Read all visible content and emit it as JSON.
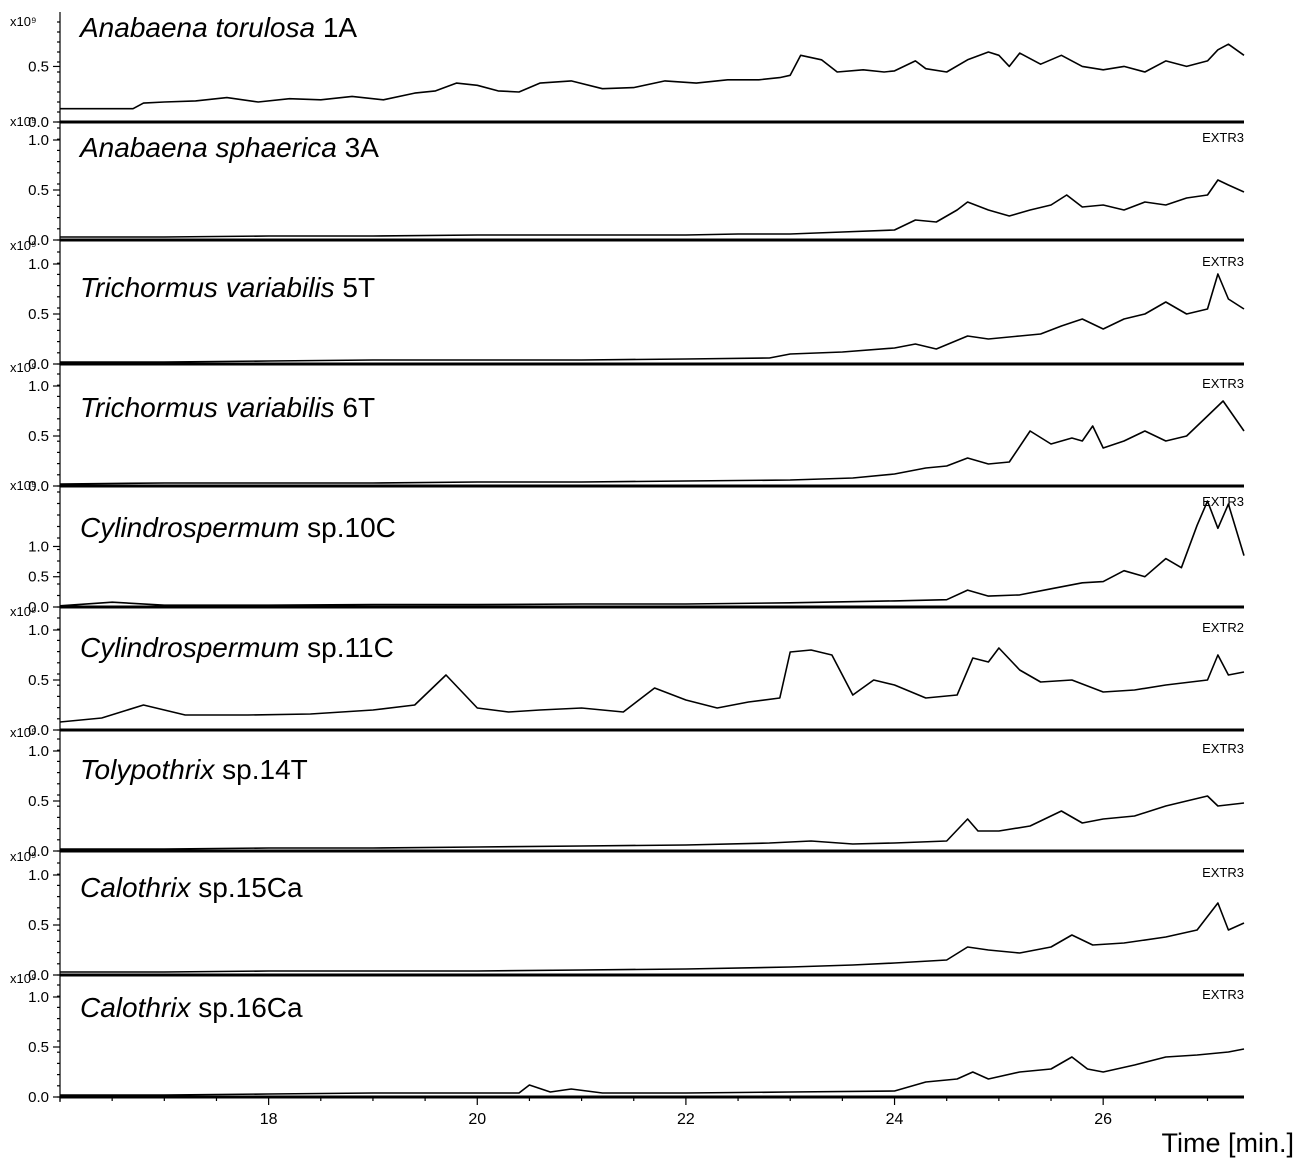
{
  "chart_data": {
    "type": "line",
    "x_label": "Time [min.]",
    "x_ticks": [
      18,
      20,
      22,
      24,
      26
    ],
    "x_range": [
      16.0,
      27.35
    ],
    "y_exponent_label": "x10⁹",
    "panels": [
      {
        "name_italic": "Anabaena torulosa",
        "name_plain": " 1A",
        "extr": "",
        "y_ticks": [
          "0.0",
          "0.5"
        ],
        "y_tick_values": [
          0.0,
          0.5
        ],
        "y_max": 0.9,
        "series": [
          [
            16.0,
            0.12
          ],
          [
            16.7,
            0.12
          ],
          [
            16.8,
            0.17
          ],
          [
            17.0,
            0.18
          ],
          [
            17.3,
            0.19
          ],
          [
            17.6,
            0.22
          ],
          [
            17.9,
            0.18
          ],
          [
            18.2,
            0.21
          ],
          [
            18.5,
            0.2
          ],
          [
            18.8,
            0.23
          ],
          [
            19.1,
            0.2
          ],
          [
            19.4,
            0.26
          ],
          [
            19.6,
            0.28
          ],
          [
            19.8,
            0.35
          ],
          [
            20.0,
            0.33
          ],
          [
            20.2,
            0.28
          ],
          [
            20.4,
            0.27
          ],
          [
            20.6,
            0.35
          ],
          [
            20.9,
            0.37
          ],
          [
            21.2,
            0.3
          ],
          [
            21.5,
            0.31
          ],
          [
            21.8,
            0.37
          ],
          [
            22.1,
            0.35
          ],
          [
            22.4,
            0.38
          ],
          [
            22.7,
            0.38
          ],
          [
            22.9,
            0.4
          ],
          [
            23.0,
            0.42
          ],
          [
            23.1,
            0.6
          ],
          [
            23.3,
            0.56
          ],
          [
            23.45,
            0.45
          ],
          [
            23.7,
            0.47
          ],
          [
            23.9,
            0.45
          ],
          [
            24.0,
            0.46
          ],
          [
            24.2,
            0.55
          ],
          [
            24.3,
            0.48
          ],
          [
            24.5,
            0.45
          ],
          [
            24.7,
            0.56
          ],
          [
            24.9,
            0.63
          ],
          [
            25.0,
            0.6
          ],
          [
            25.1,
            0.5
          ],
          [
            25.2,
            0.62
          ],
          [
            25.4,
            0.52
          ],
          [
            25.6,
            0.6
          ],
          [
            25.8,
            0.5
          ],
          [
            26.0,
            0.47
          ],
          [
            26.2,
            0.5
          ],
          [
            26.4,
            0.45
          ],
          [
            26.6,
            0.55
          ],
          [
            26.8,
            0.5
          ],
          [
            27.0,
            0.55
          ],
          [
            27.1,
            0.65
          ],
          [
            27.2,
            0.7
          ],
          [
            27.35,
            0.6
          ]
        ]
      },
      {
        "name_italic": "Anabaena sphaerica",
        "name_plain": " 3A",
        "extr": "EXTR3",
        "y_ticks": [
          "0.0",
          "0.5",
          "1.0"
        ],
        "y_tick_values": [
          0.0,
          0.5,
          1.0
        ],
        "y_max": 1.12,
        "series": [
          [
            16.0,
            0.03
          ],
          [
            17.0,
            0.03
          ],
          [
            18.0,
            0.04
          ],
          [
            19.0,
            0.04
          ],
          [
            20.0,
            0.05
          ],
          [
            21.0,
            0.05
          ],
          [
            22.0,
            0.05
          ],
          [
            22.5,
            0.06
          ],
          [
            23.0,
            0.06
          ],
          [
            23.5,
            0.08
          ],
          [
            24.0,
            0.1
          ],
          [
            24.2,
            0.2
          ],
          [
            24.4,
            0.18
          ],
          [
            24.6,
            0.3
          ],
          [
            24.7,
            0.38
          ],
          [
            24.9,
            0.3
          ],
          [
            25.1,
            0.24
          ],
          [
            25.3,
            0.3
          ],
          [
            25.5,
            0.35
          ],
          [
            25.65,
            0.45
          ],
          [
            25.8,
            0.33
          ],
          [
            26.0,
            0.35
          ],
          [
            26.2,
            0.3
          ],
          [
            26.4,
            0.38
          ],
          [
            26.6,
            0.35
          ],
          [
            26.8,
            0.42
          ],
          [
            27.0,
            0.45
          ],
          [
            27.1,
            0.6
          ],
          [
            27.2,
            0.55
          ],
          [
            27.35,
            0.48
          ]
        ]
      },
      {
        "name_italic": "Trichormus variabilis",
        "name_plain": "  5T",
        "extr": "EXTR3",
        "y_ticks": [
          "0.0",
          "0.5",
          "1.0"
        ],
        "y_tick_values": [
          0.0,
          0.5,
          1.0
        ],
        "y_max": 1.12,
        "series": [
          [
            16.0,
            0.02
          ],
          [
            17.0,
            0.02
          ],
          [
            18.0,
            0.03
          ],
          [
            19.0,
            0.04
          ],
          [
            20.0,
            0.04
          ],
          [
            21.0,
            0.04
          ],
          [
            22.0,
            0.05
          ],
          [
            22.8,
            0.06
          ],
          [
            23.0,
            0.1
          ],
          [
            23.5,
            0.12
          ],
          [
            24.0,
            0.16
          ],
          [
            24.2,
            0.2
          ],
          [
            24.4,
            0.15
          ],
          [
            24.7,
            0.28
          ],
          [
            24.9,
            0.25
          ],
          [
            25.2,
            0.28
          ],
          [
            25.4,
            0.3
          ],
          [
            25.6,
            0.38
          ],
          [
            25.8,
            0.45
          ],
          [
            26.0,
            0.35
          ],
          [
            26.2,
            0.45
          ],
          [
            26.4,
            0.5
          ],
          [
            26.6,
            0.62
          ],
          [
            26.8,
            0.5
          ],
          [
            27.0,
            0.55
          ],
          [
            27.1,
            0.9
          ],
          [
            27.2,
            0.65
          ],
          [
            27.35,
            0.55
          ]
        ]
      },
      {
        "name_italic": "Trichormus variabilis",
        "name_plain": " 6T",
        "extr": "EXTR3",
        "y_ticks": [
          "0.0",
          "0.5",
          "1.0"
        ],
        "y_tick_values": [
          0.0,
          0.5,
          1.0
        ],
        "y_max": 1.12,
        "series": [
          [
            16.0,
            0.02
          ],
          [
            17.0,
            0.03
          ],
          [
            18.0,
            0.03
          ],
          [
            19.0,
            0.03
          ],
          [
            20.0,
            0.04
          ],
          [
            21.0,
            0.04
          ],
          [
            22.0,
            0.05
          ],
          [
            23.0,
            0.06
          ],
          [
            23.6,
            0.08
          ],
          [
            24.0,
            0.12
          ],
          [
            24.3,
            0.18
          ],
          [
            24.5,
            0.2
          ],
          [
            24.7,
            0.28
          ],
          [
            24.9,
            0.22
          ],
          [
            25.1,
            0.24
          ],
          [
            25.3,
            0.55
          ],
          [
            25.5,
            0.42
          ],
          [
            25.7,
            0.48
          ],
          [
            25.8,
            0.45
          ],
          [
            25.9,
            0.6
          ],
          [
            26.0,
            0.38
          ],
          [
            26.2,
            0.45
          ],
          [
            26.4,
            0.55
          ],
          [
            26.6,
            0.45
          ],
          [
            26.8,
            0.5
          ],
          [
            27.0,
            0.7
          ],
          [
            27.15,
            0.85
          ],
          [
            27.35,
            0.55
          ]
        ]
      },
      {
        "name_italic": "Cylindrospermum",
        "name_plain": " sp.10C",
        "extr": "EXTR3",
        "y_ticks": [
          "0.0",
          "0.5",
          "1.0"
        ],
        "y_tick_values": [
          0.0,
          0.5,
          1.0
        ],
        "y_max": 1.9,
        "series": [
          [
            16.0,
            0.02
          ],
          [
            16.5,
            0.08
          ],
          [
            17.0,
            0.03
          ],
          [
            18.0,
            0.03
          ],
          [
            19.0,
            0.04
          ],
          [
            20.0,
            0.04
          ],
          [
            21.0,
            0.05
          ],
          [
            22.0,
            0.05
          ],
          [
            23.0,
            0.07
          ],
          [
            24.0,
            0.1
          ],
          [
            24.5,
            0.12
          ],
          [
            24.7,
            0.28
          ],
          [
            24.9,
            0.18
          ],
          [
            25.2,
            0.2
          ],
          [
            25.5,
            0.3
          ],
          [
            25.8,
            0.4
          ],
          [
            26.0,
            0.42
          ],
          [
            26.2,
            0.6
          ],
          [
            26.4,
            0.5
          ],
          [
            26.6,
            0.8
          ],
          [
            26.75,
            0.65
          ],
          [
            26.9,
            1.35
          ],
          [
            27.0,
            1.75
          ],
          [
            27.1,
            1.3
          ],
          [
            27.2,
            1.7
          ],
          [
            27.35,
            0.85
          ]
        ]
      },
      {
        "name_italic": "Cylindrospermum",
        "name_plain": " sp.11C",
        "extr": "EXTR2",
        "y_ticks": [
          "0.0",
          "0.5",
          "1.0"
        ],
        "y_tick_values": [
          0.0,
          0.5,
          1.0
        ],
        "y_max": 1.12,
        "series": [
          [
            16.0,
            0.08
          ],
          [
            16.4,
            0.12
          ],
          [
            16.8,
            0.25
          ],
          [
            17.2,
            0.15
          ],
          [
            17.8,
            0.15
          ],
          [
            18.4,
            0.16
          ],
          [
            19.0,
            0.2
          ],
          [
            19.4,
            0.25
          ],
          [
            19.7,
            0.55
          ],
          [
            20.0,
            0.22
          ],
          [
            20.3,
            0.18
          ],
          [
            20.6,
            0.2
          ],
          [
            21.0,
            0.22
          ],
          [
            21.4,
            0.18
          ],
          [
            21.7,
            0.42
          ],
          [
            22.0,
            0.3
          ],
          [
            22.3,
            0.22
          ],
          [
            22.6,
            0.28
          ],
          [
            22.9,
            0.32
          ],
          [
            23.0,
            0.78
          ],
          [
            23.2,
            0.8
          ],
          [
            23.4,
            0.75
          ],
          [
            23.6,
            0.35
          ],
          [
            23.8,
            0.5
          ],
          [
            24.0,
            0.45
          ],
          [
            24.3,
            0.32
          ],
          [
            24.6,
            0.35
          ],
          [
            24.75,
            0.72
          ],
          [
            24.9,
            0.68
          ],
          [
            25.0,
            0.82
          ],
          [
            25.2,
            0.6
          ],
          [
            25.4,
            0.48
          ],
          [
            25.7,
            0.5
          ],
          [
            26.0,
            0.38
          ],
          [
            26.3,
            0.4
          ],
          [
            26.6,
            0.45
          ],
          [
            27.0,
            0.5
          ],
          [
            27.1,
            0.75
          ],
          [
            27.2,
            0.55
          ],
          [
            27.35,
            0.58
          ]
        ]
      },
      {
        "name_italic": "Tolypothrix",
        "name_plain": " sp.14T",
        "extr": "EXTR3",
        "y_ticks": [
          "0.0",
          "0.5",
          "1.0"
        ],
        "y_tick_values": [
          0.0,
          0.5,
          1.0
        ],
        "y_max": 1.12,
        "series": [
          [
            16.0,
            0.02
          ],
          [
            17.0,
            0.02
          ],
          [
            18.0,
            0.03
          ],
          [
            19.0,
            0.03
          ],
          [
            20.0,
            0.04
          ],
          [
            21.0,
            0.05
          ],
          [
            22.0,
            0.06
          ],
          [
            22.8,
            0.08
          ],
          [
            23.2,
            0.1
          ],
          [
            23.6,
            0.07
          ],
          [
            24.0,
            0.08
          ],
          [
            24.5,
            0.1
          ],
          [
            24.7,
            0.32
          ],
          [
            24.8,
            0.2
          ],
          [
            25.0,
            0.2
          ],
          [
            25.3,
            0.25
          ],
          [
            25.6,
            0.4
          ],
          [
            25.8,
            0.28
          ],
          [
            26.0,
            0.32
          ],
          [
            26.3,
            0.35
          ],
          [
            26.6,
            0.45
          ],
          [
            26.8,
            0.5
          ],
          [
            27.0,
            0.55
          ],
          [
            27.1,
            0.45
          ],
          [
            27.35,
            0.48
          ]
        ]
      },
      {
        "name_italic": "Calothrix",
        "name_plain": " sp.15Ca",
        "extr": "EXTR3",
        "y_ticks": [
          "0.0",
          "0.5",
          "1.0"
        ],
        "y_tick_values": [
          0.0,
          0.5,
          1.0
        ],
        "y_max": 1.12,
        "series": [
          [
            16.0,
            0.03
          ],
          [
            17.0,
            0.03
          ],
          [
            18.0,
            0.04
          ],
          [
            19.0,
            0.04
          ],
          [
            20.0,
            0.04
          ],
          [
            21.0,
            0.05
          ],
          [
            22.0,
            0.06
          ],
          [
            23.0,
            0.08
          ],
          [
            23.6,
            0.1
          ],
          [
            24.0,
            0.12
          ],
          [
            24.5,
            0.15
          ],
          [
            24.7,
            0.28
          ],
          [
            24.9,
            0.25
          ],
          [
            25.2,
            0.22
          ],
          [
            25.5,
            0.28
          ],
          [
            25.7,
            0.4
          ],
          [
            25.9,
            0.3
          ],
          [
            26.2,
            0.32
          ],
          [
            26.6,
            0.38
          ],
          [
            26.9,
            0.45
          ],
          [
            27.1,
            0.72
          ],
          [
            27.2,
            0.45
          ],
          [
            27.35,
            0.52
          ]
        ]
      },
      {
        "name_italic": "Calothrix",
        "name_plain": " sp.16Ca",
        "extr": "EXTR3",
        "y_ticks": [
          "0.0",
          "0.5",
          "1.0"
        ],
        "y_tick_values": [
          0.0,
          0.5,
          1.0
        ],
        "y_max": 1.12,
        "series": [
          [
            16.0,
            0.02
          ],
          [
            17.0,
            0.02
          ],
          [
            18.0,
            0.03
          ],
          [
            19.0,
            0.04
          ],
          [
            20.0,
            0.04
          ],
          [
            20.4,
            0.04
          ],
          [
            20.5,
            0.12
          ],
          [
            20.7,
            0.05
          ],
          [
            20.9,
            0.08
          ],
          [
            21.2,
            0.04
          ],
          [
            22.0,
            0.04
          ],
          [
            23.0,
            0.05
          ],
          [
            24.0,
            0.06
          ],
          [
            24.3,
            0.15
          ],
          [
            24.6,
            0.18
          ],
          [
            24.75,
            0.25
          ],
          [
            24.9,
            0.18
          ],
          [
            25.2,
            0.25
          ],
          [
            25.5,
            0.28
          ],
          [
            25.7,
            0.4
          ],
          [
            25.85,
            0.28
          ],
          [
            26.0,
            0.25
          ],
          [
            26.3,
            0.32
          ],
          [
            26.6,
            0.4
          ],
          [
            26.9,
            0.42
          ],
          [
            27.2,
            0.45
          ],
          [
            27.35,
            0.48
          ]
        ]
      }
    ]
  }
}
